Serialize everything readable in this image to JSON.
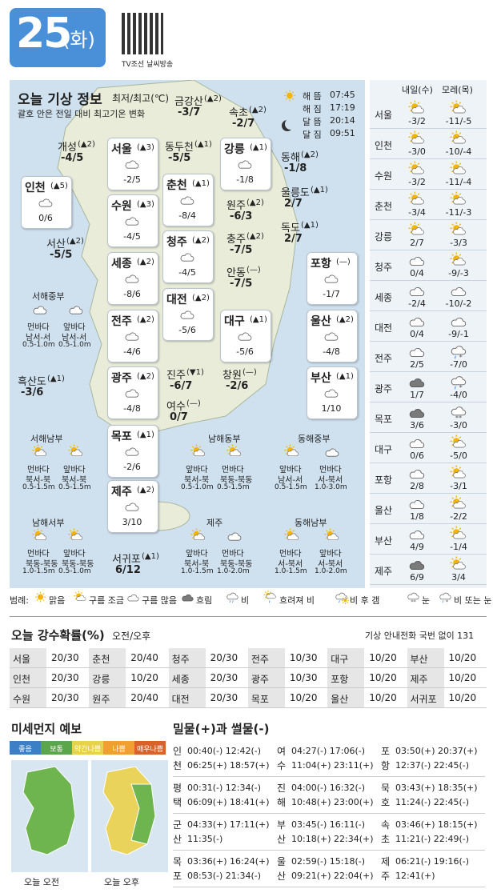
{
  "header": {
    "day": "25",
    "weekday": "(화)",
    "source": "TV조선 날씨방송"
  },
  "map": {
    "title": "오늘 기상 정보",
    "unit": "최저/최고(℃)",
    "note": "괄호 안은 전일 대비 최고기온 변화",
    "sun_moon": [
      {
        "label": "해 뜸",
        "time": "07:45"
      },
      {
        "label": "해 짐",
        "time": "17:19"
      },
      {
        "label": "달 뜸",
        "time": "20:14"
      },
      {
        "label": "달 짐",
        "time": "09:51"
      }
    ],
    "boxed": [
      {
        "name": "서울",
        "change": "(▲3)",
        "temp": "-2/5"
      },
      {
        "name": "인천",
        "change": "(▲5)",
        "temp": "0/6"
      },
      {
        "name": "수원",
        "change": "(▲3)",
        "temp": "-4/5"
      },
      {
        "name": "춘천",
        "change": "(▲1)",
        "temp": "-8/4"
      },
      {
        "name": "청주",
        "change": "(▲2)",
        "temp": "-4/5"
      },
      {
        "name": "세종",
        "change": "(▲2)",
        "temp": "-8/6"
      },
      {
        "name": "대전",
        "change": "(▲2)",
        "temp": "-5/6"
      },
      {
        "name": "강릉",
        "change": "(▲1)",
        "temp": "-1/8"
      },
      {
        "name": "전주",
        "change": "(▲2)",
        "temp": "-4/6"
      },
      {
        "name": "대구",
        "change": "(▲1)",
        "temp": "-5/6"
      },
      {
        "name": "광주",
        "change": "(▲2)",
        "temp": "-4/8"
      },
      {
        "name": "목포",
        "change": "(▲1)",
        "temp": "-2/6"
      },
      {
        "name": "제주",
        "change": "(▲2)",
        "temp": "3/10"
      },
      {
        "name": "포항",
        "change": "(—)",
        "temp": "-1/7"
      },
      {
        "name": "울산",
        "change": "(▲2)",
        "temp": "-4/8"
      },
      {
        "name": "부산",
        "change": "(▲1)",
        "temp": "1/10"
      }
    ],
    "plain": [
      {
        "name": "개성",
        "change": "(▲2)",
        "temp": "-4/5"
      },
      {
        "name": "금강산",
        "change": "(▲2)",
        "temp": "-3/7"
      },
      {
        "name": "속초",
        "change": "(▲2)",
        "temp": "-2/7"
      },
      {
        "name": "동두천",
        "change": "(▲1)",
        "temp": "-5/5"
      },
      {
        "name": "동해",
        "change": "(▲2)",
        "temp": "-1/8"
      },
      {
        "name": "울릉도",
        "change": "(▲1)",
        "temp": "2/7"
      },
      {
        "name": "독도",
        "change": "(▲1)",
        "temp": "2/7"
      },
      {
        "name": "원주",
        "change": "(▲2)",
        "temp": "-6/3"
      },
      {
        "name": "충주",
        "change": "(▲2)",
        "temp": "-7/5"
      },
      {
        "name": "안동",
        "change": "(—)",
        "temp": "-7/5"
      },
      {
        "name": "서산",
        "change": "(▲2)",
        "temp": "-5/5"
      },
      {
        "name": "흑산도",
        "change": "(▲1)",
        "temp": "-3/6"
      },
      {
        "name": "진주",
        "change": "(▼1)",
        "temp": "-6/7"
      },
      {
        "name": "창원",
        "change": "(—)",
        "temp": "-2/6"
      },
      {
        "name": "여수",
        "change": "(—)",
        "temp": "0/7"
      },
      {
        "name": "서귀포",
        "change": "(▲1)",
        "temp": "6/12"
      }
    ],
    "seas": [
      {
        "name": "서해중부",
        "parts": [
          {
            "zone": "먼바다",
            "wind": "남서-서",
            "wave": "0.5-1.0m"
          },
          {
            "zone": "앞바다",
            "wind": "남서-서",
            "wave": "0.5-1.0m"
          }
        ]
      },
      {
        "name": "서해남부",
        "parts": [
          {
            "zone": "먼바다",
            "wind": "북서-북",
            "wave": "0.5-1.5m"
          },
          {
            "zone": "앞바다",
            "wind": "북서-북",
            "wave": "0.5-1.5m"
          }
        ]
      },
      {
        "name": "남해동부",
        "parts": [
          {
            "zone": "앞바다",
            "wind": "북서-북",
            "wave": "0.5-1.0m"
          },
          {
            "zone": "먼바다",
            "wind": "북동-북동",
            "wave": "0.5-1.5m"
          }
        ]
      },
      {
        "name": "동해중부",
        "parts": [
          {
            "zone": "앞바다",
            "wind": "남서-서",
            "wave": "0.5-1.5m"
          },
          {
            "zone": "먼바다",
            "wind": "서-북서",
            "wave": "1.0-3.0m"
          }
        ]
      },
      {
        "name": "남해서부",
        "parts": [
          {
            "zone": "먼바다",
            "wind": "북동-북동",
            "wave": "1.0-1.5m"
          },
          {
            "zone": "앞바다",
            "wind": "북동-북동",
            "wave": "0.5-1.0m"
          }
        ]
      },
      {
        "name": "제주",
        "parts": [
          {
            "zone": "앞바다",
            "wind": "북서-북",
            "wave": "1.0-1.5m"
          },
          {
            "zone": "먼바다",
            "wind": "북동-북동",
            "wave": "1.0-2.0m"
          }
        ]
      },
      {
        "name": "동해남부",
        "parts": [
          {
            "zone": "먼바다",
            "wind": "서-북서",
            "wave": "1.0-1.5m"
          },
          {
            "zone": "앞바다",
            "wind": "서-북서",
            "wave": "1.0-2.0m"
          }
        ]
      }
    ]
  },
  "forecast": {
    "headers": [
      "내일(수)",
      "모레(목)"
    ],
    "rows": [
      {
        "city": "서울",
        "d1": "-3/2",
        "d2": "-11/-5"
      },
      {
        "city": "인천",
        "d1": "-3/0",
        "d2": "-10/-4"
      },
      {
        "city": "수원",
        "d1": "-3/2",
        "d2": "-11/-4"
      },
      {
        "city": "춘천",
        "d1": "-3/4",
        "d2": "-11/-3"
      },
      {
        "city": "강릉",
        "d1": "2/7",
        "d2": "-3/3"
      },
      {
        "city": "청주",
        "d1": "0/4",
        "d2": "-9/-3"
      },
      {
        "city": "세종",
        "d1": "-2/4",
        "d2": "-10/-2"
      },
      {
        "city": "대전",
        "d1": "0/4",
        "d2": "-9/-1"
      },
      {
        "city": "전주",
        "d1": "2/5",
        "d2": "-7/0"
      },
      {
        "city": "광주",
        "d1": "1/7",
        "d2": "-4/0"
      },
      {
        "city": "목포",
        "d1": "3/6",
        "d2": "-3/0"
      },
      {
        "city": "대구",
        "d1": "0/6",
        "d2": "-5/0"
      },
      {
        "city": "포항",
        "d1": "2/8",
        "d2": "-3/1"
      },
      {
        "city": "울산",
        "d1": "1/8",
        "d2": "-2/2"
      },
      {
        "city": "부산",
        "d1": "4/9",
        "d2": "-1/4"
      },
      {
        "city": "제주",
        "d1": "6/9",
        "d2": "3/4"
      }
    ]
  },
  "legend": {
    "label": "범례:",
    "items": [
      "맑음",
      "구름 조금",
      "구름 많음",
      "흐림",
      "비",
      "흐려져 비",
      "비 후 갬",
      "눈",
      "비 또는 눈"
    ]
  },
  "precip": {
    "title": "오늘 강수확률(%)",
    "subtitle": "오전/오후",
    "note": "기상 안내전화 국번 없이 131",
    "rows": [
      [
        [
          "서울",
          "20/30"
        ],
        [
          "춘천",
          "20/40"
        ],
        [
          "청주",
          "20/30"
        ],
        [
          "전주",
          "10/30"
        ],
        [
          "대구",
          "10/20"
        ],
        [
          "부산",
          "10/20"
        ]
      ],
      [
        [
          "인천",
          "20/30"
        ],
        [
          "강릉",
          "10/20"
        ],
        [
          "세종",
          "20/30"
        ],
        [
          "광주",
          "10/30"
        ],
        [
          "포항",
          "10/20"
        ],
        [
          "제주",
          "10/20"
        ]
      ],
      [
        [
          "수원",
          "20/30"
        ],
        [
          "원주",
          "20/40"
        ],
        [
          "대전",
          "20/30"
        ],
        [
          "목포",
          "10/20"
        ],
        [
          "울산",
          "10/20"
        ],
        [
          "서귀포",
          "10/20"
        ]
      ]
    ]
  },
  "dust": {
    "title": "미세먼지 예보",
    "levels": [
      {
        "label": "좋음",
        "color": "#3b7fc4"
      },
      {
        "label": "보통",
        "color": "#5aa64a"
      },
      {
        "label": "약간나쁨",
        "color": "#e8d24a"
      },
      {
        "label": "나쁨",
        "color": "#f0a030"
      },
      {
        "label": "매우나쁨",
        "color": "#d9622b"
      }
    ],
    "maps": [
      "오늘 오전",
      "오늘 오후"
    ]
  },
  "tides": {
    "title": "밀물(+)과 썰물(-)",
    "stations": [
      {
        "name": "인천",
        "lines": [
          "00:40(-) 12:42(-)",
          "06:25(+) 18:57(+)"
        ]
      },
      {
        "name": "여수",
        "lines": [
          "04:27(-) 17:06(-)",
          "11:04(+) 23:11(+)"
        ]
      },
      {
        "name": "포항",
        "lines": [
          "03:50(+) 20:37(+)",
          "12:37(-) 22:45(-)"
        ]
      },
      {
        "name": "평택",
        "lines": [
          "00:31(-) 12:34(-)",
          "06:09(+) 18:41(+)"
        ]
      },
      {
        "name": "진해",
        "lines": [
          "04:00(-) 16:32(-)",
          "10:48(+) 23:00(+)"
        ]
      },
      {
        "name": "묵호",
        "lines": [
          "03:43(+) 18:35(+)",
          "11:24(-) 22:45(-)"
        ]
      },
      {
        "name": "군산",
        "lines": [
          "04:33(+) 17:11(+)",
          "11:35(-)"
        ]
      },
      {
        "name": "부산",
        "lines": [
          "03:45(-) 16:11(-)",
          "10:18(+) 22:34(+)"
        ]
      },
      {
        "name": "속초",
        "lines": [
          "03:46(+) 18:15(+)",
          "11:21(-) 22:49(-)"
        ]
      },
      {
        "name": "목포",
        "lines": [
          "03:36(+) 16:24(+)",
          "08:53(-) 21:34(-)"
        ]
      },
      {
        "name": "울산",
        "lines": [
          "02:59(-) 15:18(-)",
          "09:21(+) 22:04(+)"
        ]
      },
      {
        "name": "제주",
        "lines": [
          "06:21(-) 19:16(-)",
          "12:41(+)"
        ]
      }
    ]
  }
}
